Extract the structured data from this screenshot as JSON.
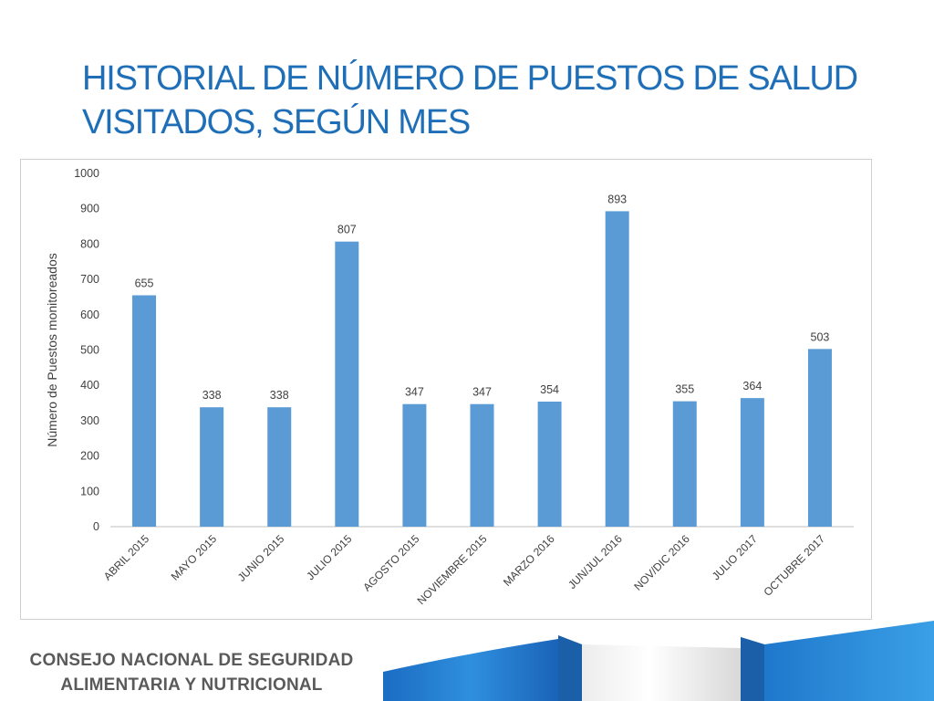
{
  "slide": {
    "title_line1": "HISTORIAL DE NÚMERO DE PUESTOS DE SALUD",
    "title_line2": "VISITADOS, SEGÚN MES"
  },
  "footer": {
    "line1": "CONSEJO NACIONAL DE SEGURIDAD",
    "line2": "ALIMENTARIA Y NUTRICIONAL"
  },
  "colors": {
    "bar": "#5b9bd5",
    "title": "#1f6fb8",
    "axis_text": "#404040"
  },
  "chart_data": {
    "type": "bar",
    "title": "",
    "xlabel": "",
    "ylabel": "Número de Puestos monitoreados",
    "categories": [
      "ABRIL 2015",
      "MAYO 2015",
      "JUNIO 2015",
      "JULIO 2015",
      "AGOSTO 2015",
      "NOVIEMBRE 2015",
      "MARZO 2016",
      "JUN/JUL 2016",
      "NOV/DIC 2016",
      "JULIO 2017",
      "OCTUBRE 2017"
    ],
    "values": [
      655,
      338,
      338,
      807,
      347,
      347,
      354,
      893,
      355,
      364,
      503
    ],
    "ylim": [
      0,
      1000
    ],
    "yticks": [
      0,
      100,
      200,
      300,
      400,
      500,
      600,
      700,
      800,
      900,
      1000
    ],
    "grid": false,
    "data_labels": true
  }
}
